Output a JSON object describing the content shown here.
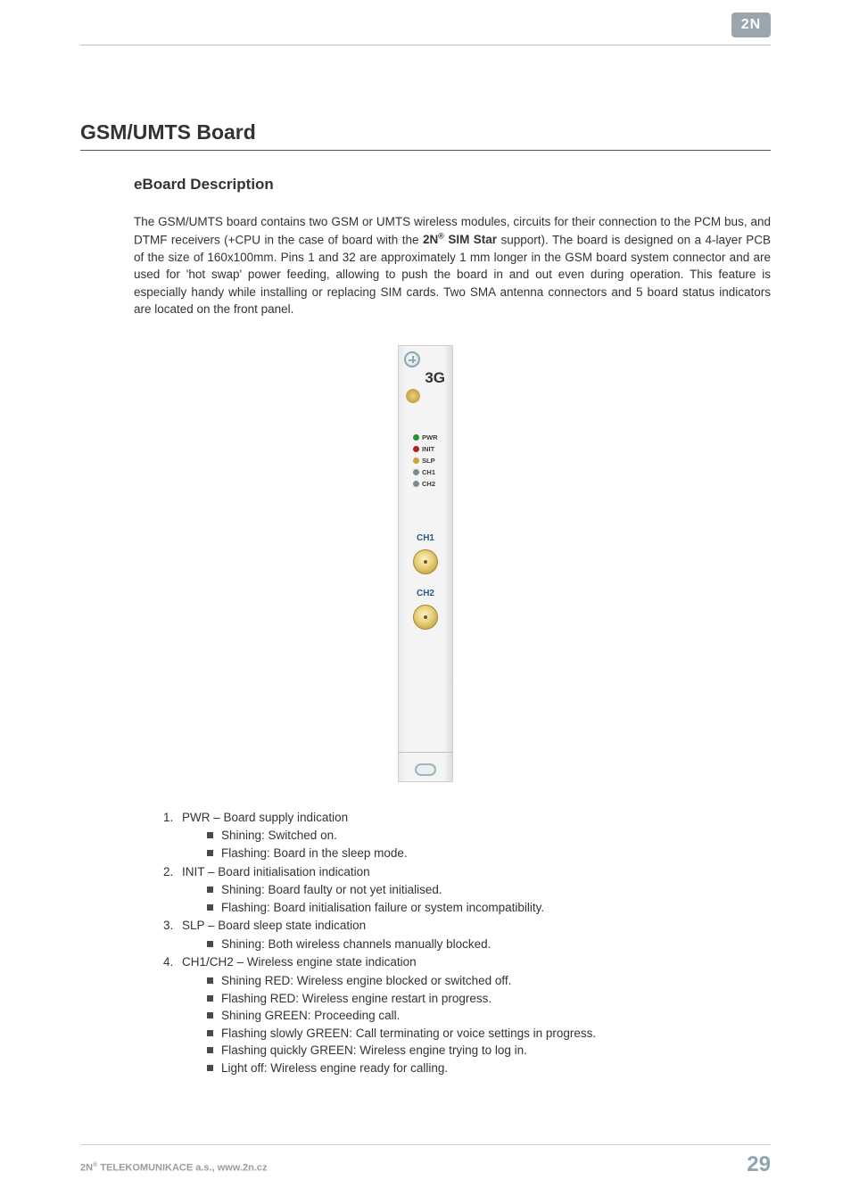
{
  "logo_text": "2N",
  "heading": "GSM/UMTS Board",
  "subheading": "eBoard Description",
  "paragraph_parts": {
    "p1": "The GSM/UMTS board contains two GSM or UMTS wireless modules, circuits for their connection to the PCM bus, and DTMF receivers (+CPU in the case of board with the ",
    "brand_pre": "2N",
    "brand_reg": "®",
    "brand_post": " SIM Star",
    "p2": " support). The board is designed on a 4-layer PCB of the size of 160x100mm. Pins 1 and 32 are approximately 1 mm longer in the GSM board system connector and are used for 'hot swap' power feeding, allowing to push the board in and out even during operation. This feature is especially handy while installing or replacing SIM cards. Two SMA antenna connectors and 5 board status indicators are located on the front panel."
  },
  "panel": {
    "title": "3G",
    "leds": [
      {
        "label": "PWR",
        "color": "#2e8f2e"
      },
      {
        "label": "INIT",
        "color": "#b22020"
      },
      {
        "label": "SLP",
        "color": "#c9a23a"
      },
      {
        "label": "CH1",
        "color": "#7f8a90"
      },
      {
        "label": "CH2",
        "color": "#7f8a90"
      }
    ],
    "ch1": "CH1",
    "ch2": "CH2"
  },
  "indicators": [
    {
      "title": "PWR – Board supply indication",
      "items": [
        "Shining: Switched on.",
        "Flashing: Board in the sleep mode."
      ]
    },
    {
      "title": "INIT – Board initialisation indication",
      "items": [
        "Shining: Board faulty or not yet initialised.",
        "Flashing: Board initialisation failure or system incompatibility."
      ]
    },
    {
      "title": "SLP – Board sleep state indication",
      "items": [
        "Shining: Both wireless channels manually blocked."
      ]
    },
    {
      "title": "CH1/CH2 – Wireless engine state indication",
      "items": [
        "Shining RED: Wireless engine blocked or switched off.",
        "Flashing RED: Wireless engine restart in progress.",
        "Shining GREEN: Proceeding call.",
        "Flashing slowly GREEN: Call terminating or voice settings in progress.",
        "Flashing quickly GREEN: Wireless engine trying to log in.",
        "Light off: Wireless engine ready for calling."
      ]
    }
  ],
  "footer": {
    "company_pre": "2N",
    "company_reg": "®",
    "company_post": " TELEKOMUNIKACE a.s., www.2n.cz",
    "page": "29"
  },
  "colors": {
    "footer_page": "#8fa3b0",
    "footer_text": "#9c9c9c",
    "heading_rule": "#555555"
  }
}
